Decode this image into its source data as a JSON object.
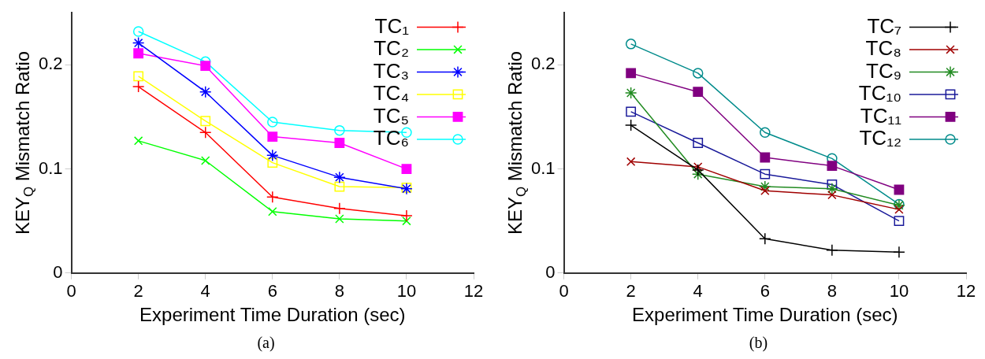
{
  "chart_data": [
    {
      "type": "line",
      "xlabel": "Experiment Time Duration (sec)",
      "ylabel": "KEY$_{Q}$ Mismatch Ratio",
      "annotations": [
        "(a)"
      ],
      "x": [
        2,
        4,
        6,
        8,
        10
      ],
      "xlim": [
        0,
        12
      ],
      "xticks": [
        0,
        2,
        4,
        6,
        8,
        10,
        12
      ],
      "ylim": [
        0,
        0.25
      ],
      "yticks": [
        0,
        0.1,
        0.2
      ],
      "grid": false,
      "legend": "top right",
      "series": [
        {
          "name": "TC₁",
          "color": "#ff0000",
          "marker": "cross",
          "values": [
            0.179,
            0.135,
            0.073,
            0.062,
            0.055
          ]
        },
        {
          "name": "TC₂",
          "color": "#00ff00",
          "marker": "cross",
          "values": [
            0.127,
            0.108,
            0.059,
            0.052,
            0.05
          ]
        },
        {
          "name": "TC₃",
          "color": "#0000ff",
          "marker": "cross",
          "values": [
            0.221,
            0.174,
            0.113,
            0.092,
            0.081
          ]
        },
        {
          "name": "TC₄",
          "color": "#ffff00",
          "marker": "square",
          "values": [
            0.189,
            0.146,
            0.106,
            0.083,
            0.082
          ]
        },
        {
          "name": "TC₅",
          "color": "#ff00ff",
          "marker": "square",
          "values": [
            0.211,
            0.199,
            0.131,
            0.125,
            0.1
          ]
        },
        {
          "name": "TC₆",
          "color": "#00ffff",
          "marker": "circle",
          "values": [
            0.232,
            0.203,
            0.145,
            0.137,
            0.135
          ]
        }
      ]
    },
    {
      "type": "line",
      "xlabel": "Experiment Time Duration (sec)",
      "ylabel": "KEY$_{Q}$ Mismatch Ratio",
      "annotations": [
        "(b)"
      ],
      "x": [
        2,
        4,
        6,
        8,
        10
      ],
      "xlim": [
        0,
        12
      ],
      "xticks": [
        0,
        2,
        4,
        6,
        8,
        10,
        12
      ],
      "ylim": [
        0,
        0.25
      ],
      "yticks": [
        0,
        0.1,
        0.2
      ],
      "grid": false,
      "legend": "top right",
      "series": [
        {
          "name": "TC₇",
          "color": "#000000",
          "marker": "cross",
          "values": [
            0.142,
            0.099,
            0.033,
            0.022,
            0.02
          ]
        },
        {
          "name": "TC₈",
          "color": "#a00000",
          "marker": "cross",
          "values": [
            0.107,
            0.102,
            0.079,
            0.075,
            0.061
          ]
        },
        {
          "name": "TC₉",
          "color": "#228b22",
          "marker": "cross",
          "values": [
            0.173,
            0.095,
            0.083,
            0.081,
            0.065
          ]
        },
        {
          "name": "TC₁₀",
          "color": "#1a1a9a",
          "marker": "square",
          "values": [
            0.155,
            0.125,
            0.095,
            0.085,
            0.05
          ]
        },
        {
          "name": "TC₁₁",
          "color": "#800080",
          "marker": "square",
          "values": [
            0.192,
            0.174,
            0.111,
            0.103,
            0.08
          ]
        },
        {
          "name": "TC₁₂",
          "color": "#008b8b",
          "marker": "circle",
          "values": [
            0.22,
            0.192,
            0.135,
            0.11,
            0.066
          ]
        }
      ]
    }
  ]
}
